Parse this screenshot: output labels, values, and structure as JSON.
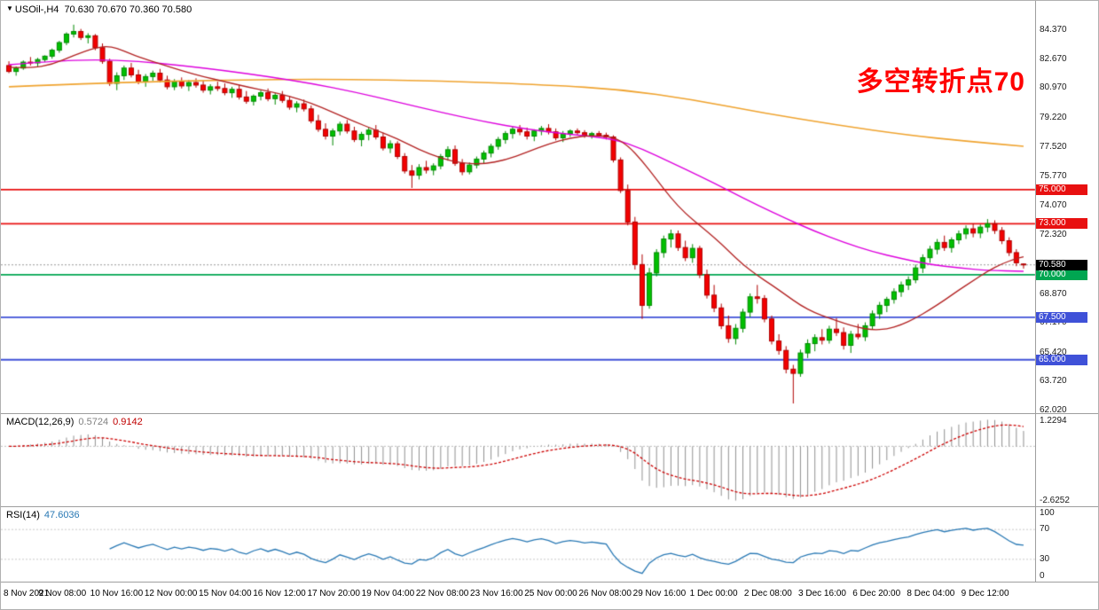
{
  "title": {
    "symbol_timeframe": "USOil-,H4",
    "ohlc": "70.630 70.670 70.360 70.580"
  },
  "annotation": {
    "text": "多空转折点70",
    "color": "#FF0000"
  },
  "chart_data": {
    "type": "candlestick",
    "symbol": "USOil-",
    "timeframe": "H4",
    "title": "USOil-,H4 70.630 70.670 70.360 70.580",
    "current_bar": {
      "open": 70.63,
      "high": 70.67,
      "low": 70.36,
      "close": 70.58
    },
    "price_axis": {
      "max": 86.1,
      "min": 61.86,
      "ticks": [
        "84.370",
        "82.670",
        "80.970",
        "79.220",
        "77.520",
        "75.770",
        "74.070",
        "72.320",
        "68.870",
        "67.170",
        "65.420",
        "63.720",
        "62.020"
      ]
    },
    "levels": [
      {
        "label": "75.000",
        "price": 75.0,
        "color": "#E81010"
      },
      {
        "label": "73.000",
        "price": 73.0,
        "color": "#E81010"
      },
      {
        "label": "70.000",
        "price": 70.0,
        "color": "#00A651"
      },
      {
        "label": "67.500",
        "price": 67.5,
        "color": "#3F51D8"
      },
      {
        "label": "65.000",
        "price": 65.0,
        "color": "#3F51D8"
      }
    ],
    "current_price_tag": {
      "label": "70.580",
      "price": 70.58,
      "bg": "#000000"
    },
    "time_labels": [
      "8 Nov 2021",
      "9 Nov 08:00",
      "10 Nov 16:00",
      "12 Nov 00:00",
      "15 Nov 04:00",
      "16 Nov 12:00",
      "17 Nov 20:00",
      "19 Nov 04:00",
      "22 Nov 08:00",
      "23 Nov 16:00",
      "25 Nov 00:00",
      "26 Nov 08:00",
      "29 Nov 16:00",
      "1 Dec 00:00",
      "2 Dec 08:00",
      "3 Dec 16:00",
      "6 Dec 20:00",
      "8 Dec 04:00",
      "9 Dec 12:00"
    ],
    "colors": {
      "up": "#00C000",
      "up_dark": "#008A00",
      "down": "#F30000",
      "down_dark": "#B00000",
      "ma_fast": "#B22222",
      "ma_mid": "#DD00DD",
      "ma_slow": "#EFA32F",
      "macd_hist": "#909090",
      "macd_signal": "#CC0000",
      "rsi": "#2878B4",
      "current_line": "#999999"
    },
    "candles": [
      [
        82.3,
        82.55,
        81.85,
        81.95
      ],
      [
        81.95,
        82.25,
        81.7,
        82.15
      ],
      [
        82.15,
        82.6,
        82.05,
        82.5
      ],
      [
        82.5,
        82.8,
        82.3,
        82.45
      ],
      [
        82.45,
        82.75,
        82.25,
        82.65
      ],
      [
        82.65,
        82.9,
        82.5,
        82.85
      ],
      [
        82.85,
        83.3,
        82.7,
        83.2
      ],
      [
        83.2,
        83.75,
        83.05,
        83.65
      ],
      [
        83.65,
        84.25,
        83.5,
        84.15
      ],
      [
        84.15,
        84.7,
        83.95,
        84.3
      ],
      [
        84.3,
        84.45,
        83.8,
        83.95
      ],
      [
        83.95,
        84.2,
        83.6,
        84.05
      ],
      [
        84.05,
        84.15,
        83.2,
        83.35
      ],
      [
        83.35,
        83.6,
        82.4,
        82.55
      ],
      [
        82.55,
        82.7,
        81.1,
        81.25
      ],
      [
        81.25,
        81.9,
        80.85,
        81.7
      ],
      [
        81.7,
        82.3,
        81.45,
        82.15
      ],
      [
        82.15,
        82.45,
        81.6,
        81.75
      ],
      [
        81.75,
        82.05,
        81.2,
        81.35
      ],
      [
        81.35,
        81.8,
        81.05,
        81.65
      ],
      [
        81.65,
        82.0,
        81.4,
        81.85
      ],
      [
        81.85,
        82.1,
        81.3,
        81.45
      ],
      [
        81.45,
        81.7,
        80.9,
        81.05
      ],
      [
        81.05,
        81.5,
        80.85,
        81.35
      ],
      [
        81.35,
        81.6,
        80.95,
        81.1
      ],
      [
        81.1,
        81.45,
        80.8,
        81.3
      ],
      [
        81.3,
        81.55,
        81.0,
        81.15
      ],
      [
        81.15,
        81.4,
        80.7,
        80.85
      ],
      [
        80.85,
        81.2,
        80.6,
        81.05
      ],
      [
        81.05,
        81.35,
        80.8,
        80.95
      ],
      [
        80.95,
        81.25,
        80.55,
        80.7
      ],
      [
        80.7,
        81.05,
        80.4,
        80.9
      ],
      [
        80.9,
        81.15,
        80.3,
        80.45
      ],
      [
        80.45,
        80.8,
        80.05,
        80.2
      ],
      [
        80.2,
        80.6,
        79.95,
        80.5
      ],
      [
        80.5,
        80.85,
        80.25,
        80.7
      ],
      [
        80.7,
        80.95,
        80.2,
        80.35
      ],
      [
        80.35,
        80.7,
        80.0,
        80.55
      ],
      [
        80.55,
        80.8,
        80.1,
        80.25
      ],
      [
        80.25,
        80.5,
        79.7,
        79.85
      ],
      [
        79.85,
        80.2,
        79.55,
        80.05
      ],
      [
        80.05,
        80.3,
        79.6,
        79.75
      ],
      [
        79.75,
        79.95,
        78.9,
        79.05
      ],
      [
        79.05,
        79.4,
        78.4,
        78.55
      ],
      [
        78.55,
        78.9,
        77.95,
        78.15
      ],
      [
        78.15,
        78.6,
        77.6,
        78.45
      ],
      [
        78.45,
        79.0,
        78.2,
        78.85
      ],
      [
        78.85,
        79.1,
        78.3,
        78.45
      ],
      [
        78.45,
        78.7,
        77.8,
        77.95
      ],
      [
        77.95,
        78.4,
        77.55,
        78.25
      ],
      [
        78.25,
        78.65,
        77.9,
        78.5
      ],
      [
        78.5,
        78.8,
        77.95,
        78.1
      ],
      [
        78.1,
        78.35,
        77.3,
        77.45
      ],
      [
        77.45,
        77.9,
        77.15,
        77.7
      ],
      [
        77.7,
        77.85,
        76.8,
        76.95
      ],
      [
        76.95,
        77.15,
        75.95,
        76.1
      ],
      [
        76.1,
        76.45,
        75.1,
        75.85
      ],
      [
        75.85,
        76.5,
        75.6,
        76.3
      ],
      [
        76.3,
        76.7,
        75.95,
        76.15
      ],
      [
        76.15,
        76.55,
        75.85,
        76.4
      ],
      [
        76.4,
        77.1,
        76.2,
        76.95
      ],
      [
        76.95,
        77.55,
        76.7,
        77.35
      ],
      [
        77.35,
        77.6,
        76.4,
        76.55
      ],
      [
        76.55,
        76.8,
        75.85,
        76.05
      ],
      [
        76.05,
        76.6,
        75.9,
        76.45
      ],
      [
        76.45,
        76.95,
        76.25,
        76.8
      ],
      [
        76.8,
        77.3,
        76.55,
        77.15
      ],
      [
        77.15,
        77.7,
        76.9,
        77.55
      ],
      [
        77.55,
        78.1,
        77.35,
        77.95
      ],
      [
        77.95,
        78.45,
        77.7,
        78.3
      ],
      [
        78.3,
        78.7,
        78.0,
        78.55
      ],
      [
        78.55,
        78.8,
        78.2,
        78.4
      ],
      [
        78.4,
        78.65,
        77.95,
        78.15
      ],
      [
        78.15,
        78.55,
        77.85,
        78.45
      ],
      [
        78.45,
        78.75,
        78.2,
        78.6
      ],
      [
        78.6,
        78.85,
        78.25,
        78.4
      ],
      [
        78.4,
        78.6,
        77.9,
        78.05
      ],
      [
        78.05,
        78.45,
        77.8,
        78.3
      ],
      [
        78.3,
        78.55,
        78.1,
        78.45
      ],
      [
        78.45,
        78.6,
        78.2,
        78.35
      ],
      [
        78.35,
        78.5,
        78.05,
        78.2
      ],
      [
        78.2,
        78.4,
        78.0,
        78.3
      ],
      [
        78.3,
        78.45,
        78.1,
        78.2
      ],
      [
        78.2,
        78.35,
        77.95,
        78.1
      ],
      [
        78.1,
        78.2,
        76.6,
        76.75
      ],
      [
        76.75,
        76.9,
        74.8,
        74.95
      ],
      [
        74.95,
        75.3,
        72.9,
        73.1
      ],
      [
        73.1,
        73.4,
        70.3,
        70.6
      ],
      [
        70.6,
        71.2,
        67.4,
        68.2
      ],
      [
        68.2,
        70.4,
        68.0,
        70.1
      ],
      [
        70.1,
        71.5,
        69.9,
        71.3
      ],
      [
        71.3,
        72.3,
        71.0,
        72.1
      ],
      [
        72.1,
        72.65,
        71.6,
        72.4
      ],
      [
        72.4,
        72.6,
        71.4,
        71.6
      ],
      [
        71.6,
        72.0,
        70.8,
        71.0
      ],
      [
        71.0,
        71.8,
        70.7,
        71.55
      ],
      [
        71.55,
        71.7,
        69.8,
        70.0
      ],
      [
        70.0,
        70.3,
        68.6,
        68.8
      ],
      [
        68.8,
        69.4,
        67.8,
        68.05
      ],
      [
        68.05,
        68.3,
        66.8,
        67.0
      ],
      [
        67.0,
        67.6,
        66.0,
        66.25
      ],
      [
        66.25,
        67.1,
        65.9,
        66.85
      ],
      [
        66.85,
        68.0,
        66.6,
        67.8
      ],
      [
        67.8,
        68.9,
        67.5,
        68.7
      ],
      [
        68.7,
        69.4,
        68.3,
        68.6
      ],
      [
        68.6,
        68.8,
        67.2,
        67.4
      ],
      [
        67.4,
        67.6,
        65.9,
        66.1
      ],
      [
        66.1,
        66.5,
        65.3,
        65.55
      ],
      [
        65.55,
        65.8,
        64.2,
        64.45
      ],
      [
        64.45,
        64.7,
        62.43,
        64.2
      ],
      [
        64.2,
        65.6,
        64.0,
        65.4
      ],
      [
        65.4,
        66.2,
        65.1,
        65.95
      ],
      [
        65.95,
        66.5,
        65.5,
        66.3
      ],
      [
        66.3,
        66.8,
        65.9,
        66.15
      ],
      [
        66.15,
        67.0,
        65.95,
        66.8
      ],
      [
        66.8,
        67.45,
        66.4,
        66.6
      ],
      [
        66.6,
        66.9,
        65.6,
        65.85
      ],
      [
        65.85,
        66.7,
        65.4,
        66.5
      ],
      [
        66.5,
        67.1,
        66.2,
        66.35
      ],
      [
        66.35,
        67.2,
        66.1,
        67.0
      ],
      [
        67.0,
        67.9,
        66.8,
        67.7
      ],
      [
        67.7,
        68.4,
        67.4,
        68.2
      ],
      [
        68.2,
        68.7,
        67.8,
        68.55
      ],
      [
        68.55,
        69.2,
        68.3,
        69.0
      ],
      [
        69.0,
        69.6,
        68.7,
        69.4
      ],
      [
        69.4,
        69.9,
        69.1,
        69.7
      ],
      [
        69.7,
        70.6,
        69.5,
        70.4
      ],
      [
        70.4,
        71.2,
        70.1,
        71.0
      ],
      [
        71.0,
        71.7,
        70.7,
        71.5
      ],
      [
        71.5,
        72.1,
        71.2,
        71.9
      ],
      [
        71.9,
        72.3,
        71.4,
        71.6
      ],
      [
        71.6,
        72.2,
        71.3,
        72.05
      ],
      [
        72.05,
        72.6,
        71.8,
        72.4
      ],
      [
        72.4,
        72.9,
        72.1,
        72.7
      ],
      [
        72.7,
        73.0,
        72.2,
        72.45
      ],
      [
        72.45,
        72.95,
        72.15,
        72.8
      ],
      [
        72.8,
        73.27,
        72.5,
        73.0
      ],
      [
        73.0,
        73.2,
        72.4,
        72.6
      ],
      [
        72.6,
        72.8,
        71.8,
        72.0
      ],
      [
        72.0,
        72.2,
        71.1,
        71.3
      ],
      [
        71.3,
        71.5,
        70.5,
        70.7
      ],
      [
        70.63,
        70.67,
        70.36,
        70.58
      ]
    ],
    "moving_averages": [
      {
        "name": "ma-slow",
        "color": "#EFA32F",
        "width": 1.6,
        "points": [
          [
            0,
            81.05
          ],
          [
            15,
            81.3
          ],
          [
            30,
            81.45
          ],
          [
            45,
            81.5
          ],
          [
            60,
            81.4
          ],
          [
            75,
            81.15
          ],
          [
            85,
            80.9
          ],
          [
            95,
            80.3
          ],
          [
            105,
            79.5
          ],
          [
            115,
            78.8
          ],
          [
            125,
            78.2
          ],
          [
            133,
            77.85
          ],
          [
            141,
            77.55
          ]
        ]
      },
      {
        "name": "ma-mid",
        "color": "#DD00DD",
        "width": 1.4,
        "points": [
          [
            0,
            82.35
          ],
          [
            6,
            82.55
          ],
          [
            12,
            82.65
          ],
          [
            18,
            82.55
          ],
          [
            24,
            82.3
          ],
          [
            30,
            82.0
          ],
          [
            36,
            81.65
          ],
          [
            42,
            81.25
          ],
          [
            48,
            80.75
          ],
          [
            54,
            80.15
          ],
          [
            60,
            79.55
          ],
          [
            66,
            79.0
          ],
          [
            72,
            78.55
          ],
          [
            78,
            78.25
          ],
          [
            84,
            78.0
          ],
          [
            88,
            77.4
          ],
          [
            92,
            76.6
          ],
          [
            96,
            75.8
          ],
          [
            100,
            74.95
          ],
          [
            104,
            74.1
          ],
          [
            108,
            73.3
          ],
          [
            112,
            72.55
          ],
          [
            116,
            71.9
          ],
          [
            120,
            71.35
          ],
          [
            124,
            70.95
          ],
          [
            128,
            70.6
          ],
          [
            132,
            70.4
          ],
          [
            136,
            70.25
          ],
          [
            141,
            70.2
          ]
        ]
      },
      {
        "name": "ma-fast",
        "color": "#B22222",
        "width": 1.3,
        "points": [
          [
            0,
            82.2
          ],
          [
            3,
            82.15
          ],
          [
            6,
            82.35
          ],
          [
            9,
            82.9
          ],
          [
            12,
            83.35
          ],
          [
            14,
            83.45
          ],
          [
            16,
            83.15
          ],
          [
            18,
            82.8
          ],
          [
            21,
            82.4
          ],
          [
            24,
            82.0
          ],
          [
            27,
            81.65
          ],
          [
            30,
            81.35
          ],
          [
            33,
            81.05
          ],
          [
            36,
            80.8
          ],
          [
            39,
            80.5
          ],
          [
            42,
            80.1
          ],
          [
            45,
            79.55
          ],
          [
            48,
            79.0
          ],
          [
            51,
            78.5
          ],
          [
            54,
            78.0
          ],
          [
            57,
            77.35
          ],
          [
            60,
            76.85
          ],
          [
            63,
            76.55
          ],
          [
            66,
            76.5
          ],
          [
            69,
            76.75
          ],
          [
            72,
            77.2
          ],
          [
            75,
            77.7
          ],
          [
            78,
            78.05
          ],
          [
            81,
            78.2
          ],
          [
            84,
            78.1
          ],
          [
            86,
            77.6
          ],
          [
            88,
            76.7
          ],
          [
            90,
            75.6
          ],
          [
            92,
            74.5
          ],
          [
            94,
            73.6
          ],
          [
            96,
            72.9
          ],
          [
            98,
            72.2
          ],
          [
            100,
            71.4
          ],
          [
            102,
            70.6
          ],
          [
            104,
            69.95
          ],
          [
            106,
            69.4
          ],
          [
            108,
            68.8
          ],
          [
            110,
            68.2
          ],
          [
            112,
            67.75
          ],
          [
            114,
            67.45
          ],
          [
            116,
            67.15
          ],
          [
            118,
            66.9
          ],
          [
            120,
            66.75
          ],
          [
            122,
            66.8
          ],
          [
            124,
            67.05
          ],
          [
            126,
            67.45
          ],
          [
            128,
            67.95
          ],
          [
            130,
            68.5
          ],
          [
            132,
            69.1
          ],
          [
            134,
            69.65
          ],
          [
            136,
            70.2
          ],
          [
            138,
            70.65
          ],
          [
            140,
            70.95
          ],
          [
            141,
            71.05
          ]
        ]
      }
    ],
    "macd": {
      "label": "MACD(12,26,9)",
      "main_value": "0.5724",
      "signal_value": "0.9142",
      "params": [
        12,
        26,
        9
      ],
      "axis_max_label": "1.2294",
      "axis_min_label": "-2.6252"
    },
    "rsi": {
      "label": "RSI(14)",
      "value": "47.6036",
      "period": 14,
      "axis_labels": [
        "100",
        "70",
        "30",
        "0"
      ],
      "level_lines": [
        70,
        30
      ]
    }
  }
}
